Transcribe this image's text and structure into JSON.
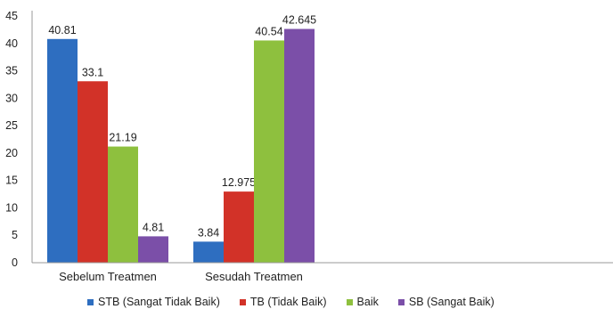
{
  "chart_data": {
    "type": "bar",
    "title": "",
    "xlabel": "",
    "ylabel": "",
    "categories": [
      "Sebelum Treatmen",
      "Sesudah Treatmen"
    ],
    "series": [
      {
        "name": "STB (Sangat Tidak Baik)",
        "color": "#2E6EC0",
        "values": [
          40.81,
          3.84
        ],
        "labels": [
          "40.81",
          "3.84"
        ]
      },
      {
        "name": "TB (Tidak Baik)",
        "color": "#D23228",
        "values": [
          33.1,
          12.975
        ],
        "labels": [
          "33.1",
          "12.975"
        ]
      },
      {
        "name": "Baik",
        "color": "#8EC03E",
        "values": [
          21.19,
          40.54
        ],
        "labels": [
          "21.19",
          "40.54"
        ]
      },
      {
        "name": "SB (Sangat Baik)",
        "color": "#7B4FA8",
        "values": [
          4.81,
          42.645
        ],
        "labels": [
          "4.81",
          "42.645"
        ]
      }
    ],
    "ylim": [
      0,
      45
    ],
    "yticks": [
      0,
      5,
      10,
      15,
      20,
      25,
      30,
      35,
      40,
      45
    ],
    "grid": false,
    "legend_position": "bottom"
  }
}
